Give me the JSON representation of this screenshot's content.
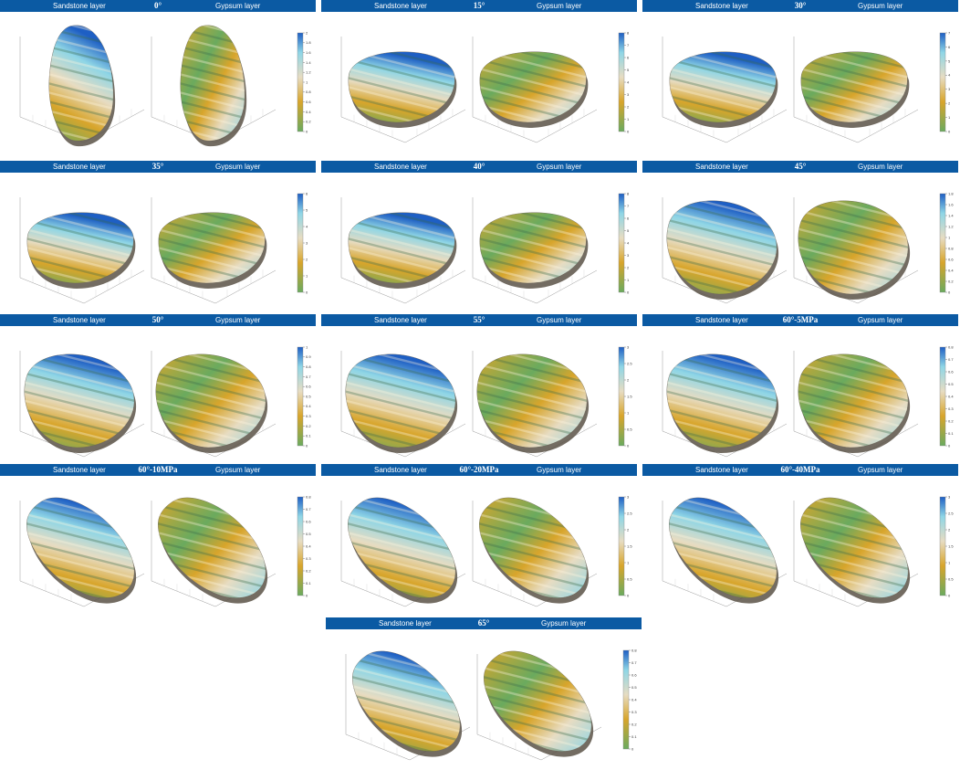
{
  "panels": [
    {
      "sandstone_label": "Sandstone layer",
      "angle": "0°",
      "gypsum_label": "Gypsum layer",
      "colorbar_ticks": [
        "0",
        "0.2",
        "0.4",
        "0.6",
        "0.8",
        "1",
        "1.2",
        "1.4",
        "1.6",
        "1.8",
        "2"
      ],
      "shape_left": "tall",
      "shape_right": "tall"
    },
    {
      "sandstone_label": "Sandstone layer",
      "angle": "15°",
      "gypsum_label": "Gypsum layer",
      "colorbar_ticks": [
        "0",
        "1",
        "2",
        "3",
        "4",
        "5",
        "6",
        "7",
        "8"
      ],
      "shape_left": "disc",
      "shape_right": "disc"
    },
    {
      "sandstone_label": "Sandstone layer",
      "angle": "30°",
      "gypsum_label": "Gypsum layer",
      "colorbar_ticks": [
        "0",
        "1",
        "2",
        "3",
        "4",
        "5",
        "6",
        "7"
      ],
      "shape_left": "disc",
      "shape_right": "disc"
    },
    {
      "sandstone_label": "Sandstone layer",
      "angle": "35°",
      "gypsum_label": "Gypsum layer",
      "colorbar_ticks": [
        "0",
        "1",
        "2",
        "3",
        "4",
        "5",
        "6"
      ],
      "shape_left": "disc",
      "shape_right": "disc"
    },
    {
      "sandstone_label": "Sandstone layer",
      "angle": "40°",
      "gypsum_label": "Gypsum layer",
      "colorbar_ticks": [
        "0",
        "1",
        "2",
        "3",
        "4",
        "5",
        "6",
        "7",
        "8"
      ],
      "shape_left": "disc",
      "shape_right": "disc"
    },
    {
      "sandstone_label": "Sandstone layer",
      "angle": "45°",
      "gypsum_label": "Gypsum layer",
      "colorbar_ticks": [
        "0",
        "0.2",
        "0.4",
        "0.6",
        "0.8",
        "1",
        "1.2",
        "1.4",
        "1.6",
        "1.8"
      ],
      "shape_left": "oval",
      "shape_right": "oval"
    },
    {
      "sandstone_label": "Sandstone layer",
      "angle": "50°",
      "gypsum_label": "Gypsum layer",
      "colorbar_ticks": [
        "0",
        "0.1",
        "0.2",
        "0.3",
        "0.4",
        "0.5",
        "0.6",
        "0.7",
        "0.8",
        "0.9",
        "1"
      ],
      "shape_left": "oval",
      "shape_right": "oval"
    },
    {
      "sandstone_label": "Sandstone layer",
      "angle": "55°",
      "gypsum_label": "Gypsum layer",
      "colorbar_ticks": [
        "0",
        "0.5",
        "1",
        "1.5",
        "2",
        "2.5",
        "3"
      ],
      "shape_left": "oval",
      "shape_right": "oval"
    },
    {
      "sandstone_label": "Sandstone layer",
      "angle": "60°-5MPa",
      "gypsum_label": "Gypsum layer",
      "colorbar_ticks": [
        "0",
        "0.1",
        "0.2",
        "0.3",
        "0.4",
        "0.5",
        "0.6",
        "0.7",
        "0.8"
      ],
      "shape_left": "oval",
      "shape_right": "oval"
    },
    {
      "sandstone_label": "Sandstone layer",
      "angle": "60°-10MPa",
      "gypsum_label": "Gypsum layer",
      "colorbar_ticks": [
        "0",
        "0.1",
        "0.2",
        "0.3",
        "0.4",
        "0.5",
        "0.6",
        "0.7",
        "0.8"
      ],
      "shape_left": "long",
      "shape_right": "long"
    },
    {
      "sandstone_label": "Sandstone layer",
      "angle": "60°-20MPa",
      "gypsum_label": "Gypsum layer",
      "colorbar_ticks": [
        "0",
        "0.5",
        "1",
        "1.5",
        "2",
        "2.5",
        "3"
      ],
      "shape_left": "long",
      "shape_right": "long"
    },
    {
      "sandstone_label": "Sandstone layer",
      "angle": "60°-40MPa",
      "gypsum_label": "Gypsum layer",
      "colorbar_ticks": [
        "0",
        "0.5",
        "1",
        "1.5",
        "2",
        "2.5",
        "3"
      ],
      "shape_left": "long",
      "shape_right": "long"
    },
    {
      "sandstone_label": "Sandstone layer",
      "angle": "65°",
      "gypsum_label": "Gypsum layer",
      "colorbar_ticks": [
        "0",
        "0.1",
        "0.2",
        "0.3",
        "0.4",
        "0.5",
        "0.6",
        "0.7",
        "0.8"
      ],
      "shape_left": "long",
      "shape_right": "long"
    }
  ],
  "colors": {
    "header": "#0b5aa3",
    "low": "#6aaa5e",
    "mid_low": "#d8a52b",
    "mid": "#e7dcc2",
    "mid_high": "#8fd6e6",
    "high": "#1e5fc4"
  }
}
